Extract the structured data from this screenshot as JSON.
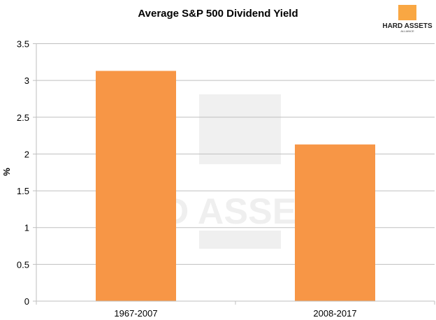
{
  "chart_data": {
    "type": "bar",
    "title": "Average S&P 500 Dividend Yield",
    "xlabel": "",
    "ylabel": "%",
    "categories": [
      "1967-2007",
      "2008-2017"
    ],
    "values": [
      3.13,
      2.13
    ],
    "ylim": [
      0,
      3.5
    ],
    "yticks": [
      "0",
      "0.5",
      "1",
      "1.5",
      "2",
      "2.5",
      "3",
      "3.5"
    ],
    "grid": true,
    "legend": "none",
    "bar_color": "#F79646"
  },
  "logo": {
    "text": "HARD ASSETS",
    "subtext": "ALLIANCE",
    "color": "#F9A743"
  },
  "watermark": {
    "text": "RD ASSETS",
    "subtext": "ALLIANCE"
  }
}
